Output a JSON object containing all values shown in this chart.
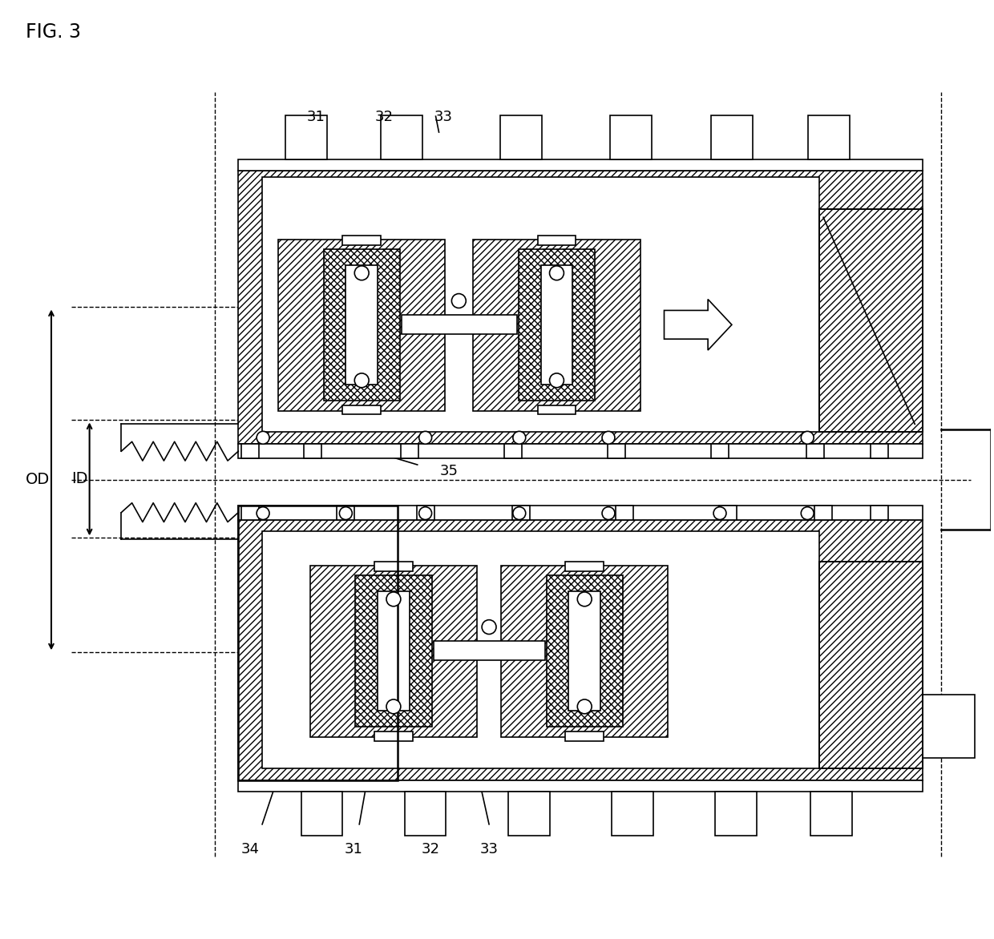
{
  "title": "FIG. 3",
  "bg_color": "#ffffff",
  "line_color": "#000000",
  "labels": {
    "fig": "FIG. 3",
    "31_top": "31",
    "32_top": "32",
    "33_top": "33",
    "35": "35",
    "OD": "OD",
    "ID": "ID",
    "34": "34",
    "31_bot": "31",
    "32_bot": "32",
    "33_bot": "33"
  },
  "fig_width": 12.4,
  "fig_height": 11.72
}
